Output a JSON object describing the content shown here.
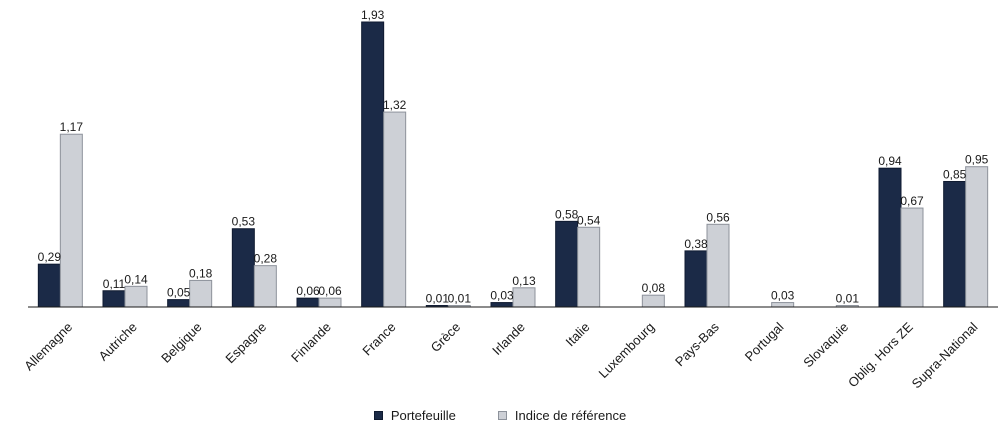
{
  "chart_data": {
    "type": "bar",
    "categories": [
      "Allemagne",
      "Autriche",
      "Belgique",
      "Espagne",
      "Finlande",
      "France",
      "Grèce",
      "Irlande",
      "Italie",
      "Luxembourg",
      "Pays-Bas",
      "Portugal",
      "Slovaquie",
      "Oblig. Hors ZE",
      "Supra-National"
    ],
    "series": [
      {
        "name": "Portefeuille",
        "color": "#1b2a47",
        "values": [
          0.29,
          0.11,
          0.05,
          0.53,
          0.06,
          1.93,
          0.01,
          0.03,
          0.58,
          null,
          0.38,
          null,
          null,
          0.94,
          0.85
        ],
        "labels": [
          "0,29",
          "0,11",
          "0,05",
          "0,53",
          "0,06",
          "1,93",
          "0,01",
          "0,03",
          "0,58",
          "",
          "0,38",
          "",
          "",
          "0,94",
          "0,85"
        ]
      },
      {
        "name": "Indice de référence",
        "color": "#cdd0d6",
        "values": [
          1.17,
          0.14,
          0.18,
          0.28,
          0.06,
          1.32,
          0.01,
          0.13,
          0.54,
          0.08,
          0.56,
          0.03,
          0.01,
          0.67,
          0.95
        ],
        "labels": [
          "1,17",
          "0,14",
          "0,18",
          "0,28",
          "0,06",
          "1,32",
          "0,01",
          "0,13",
          "0,54",
          "0,08",
          "0,56",
          "0,03",
          "0,01",
          "0,67",
          "0,95"
        ]
      }
    ],
    "ylim": [
      0,
      1.93
    ],
    "grid": false,
    "legend_position": "bottom"
  }
}
